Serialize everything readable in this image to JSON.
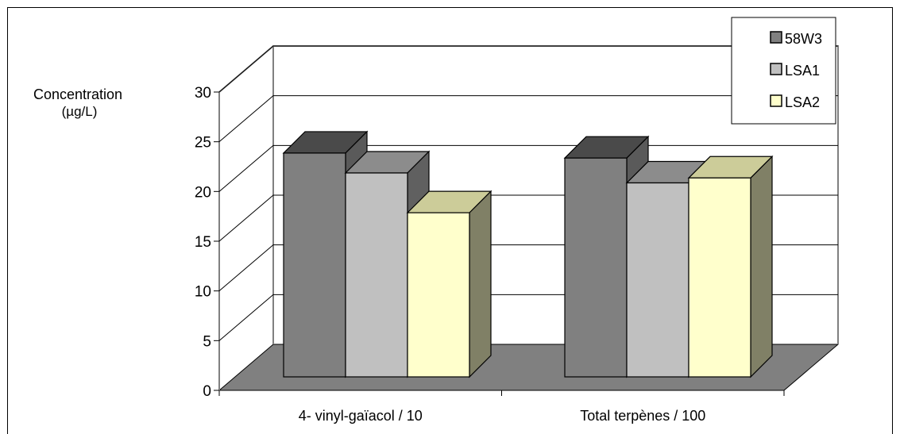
{
  "chart_data": {
    "type": "bar",
    "ylabel_line1": "Concentration",
    "ylabel_line2": "(µg/L)",
    "categories": [
      "4- vinyl-gaïacol / 10",
      "Total terpènes / 100"
    ],
    "yticks": [
      "0",
      "5",
      "10",
      "15",
      "20",
      "25",
      "30"
    ],
    "ylim": [
      0,
      30
    ],
    "grid": true,
    "legend_position": "top-right",
    "series": [
      {
        "name": "58W3",
        "values": [
          24.5,
          24.0
        ],
        "color": "#808080",
        "color_top": "#4a4a4a",
        "color_side": "#5a5a5a"
      },
      {
        "name": "LSA1",
        "values": [
          22.5,
          21.5
        ],
        "color": "#c0c0c0",
        "color_top": "#8c8c8c",
        "color_side": "#606060"
      },
      {
        "name": "LSA2",
        "values": [
          18.5,
          22.0
        ],
        "color": "#ffffcc",
        "color_top": "#cccc99",
        "color_side": "#808066"
      }
    ]
  }
}
